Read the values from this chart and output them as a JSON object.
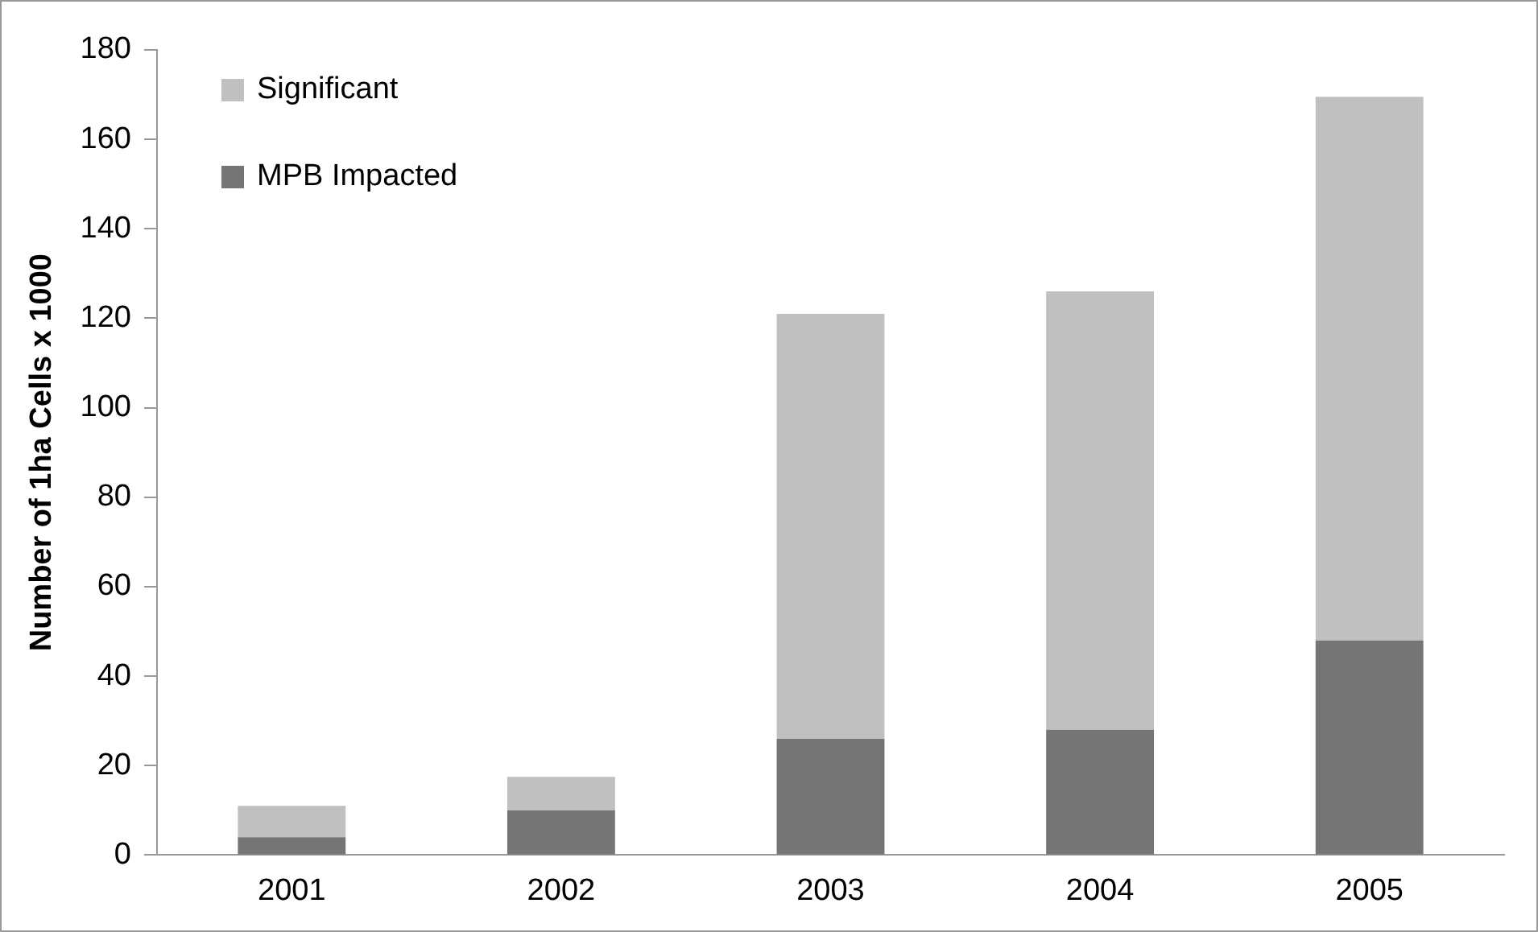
{
  "chart_data": {
    "type": "bar",
    "stacked": true,
    "ylabel": "Number of 1ha Cells x 1000",
    "categories": [
      "2001",
      "2002",
      "2003",
      "2004",
      "2005"
    ],
    "series": [
      {
        "name": "MPB Impacted",
        "color": "#757575",
        "values": [
          4,
          10,
          26,
          28,
          48
        ]
      },
      {
        "name": "Significant",
        "color": "#c0c0c0",
        "values": [
          7,
          7.5,
          95,
          98,
          121.5
        ]
      }
    ],
    "ylim": [
      0,
      180
    ],
    "yticks": [
      0,
      20,
      40,
      60,
      80,
      100,
      120,
      140,
      160,
      180
    ],
    "grid": false,
    "legend": "top left"
  }
}
